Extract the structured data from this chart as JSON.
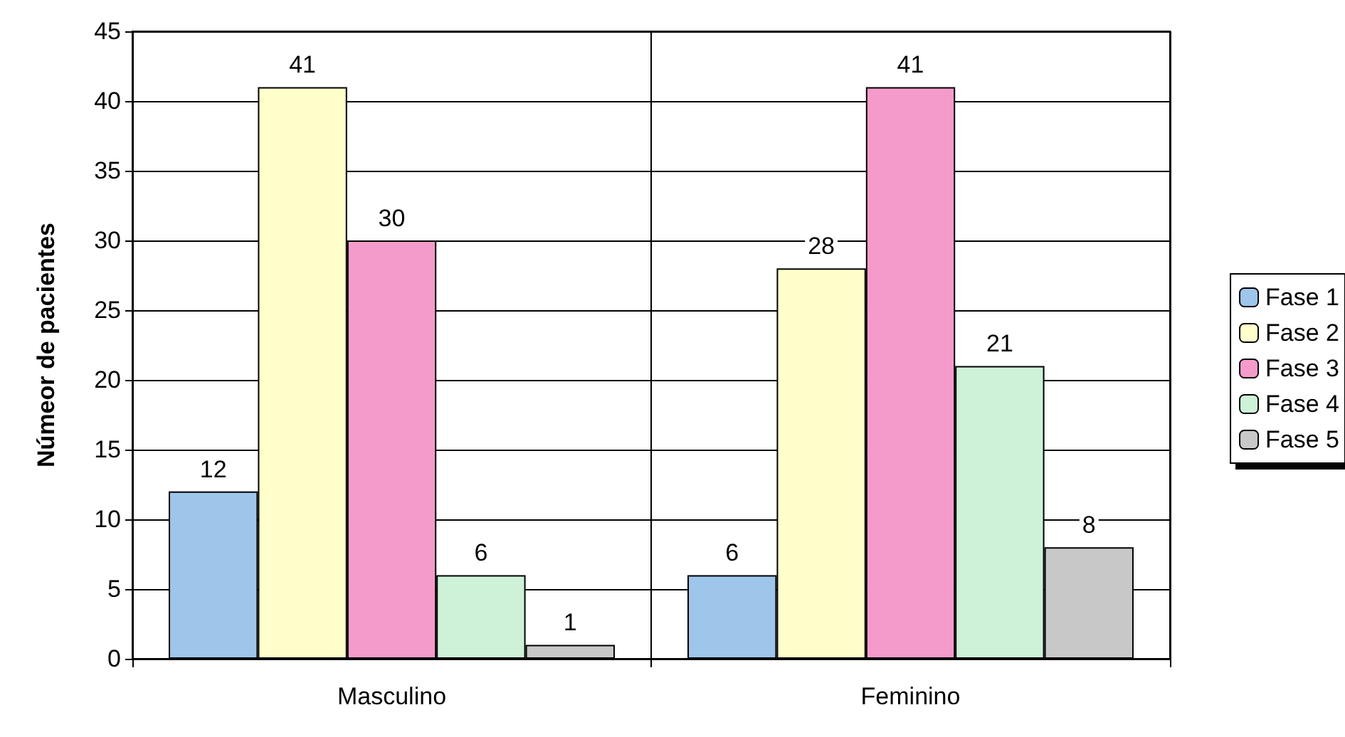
{
  "chart_data": {
    "type": "bar",
    "ylabel": "Númeor de pacientes",
    "categories": [
      "Masculino",
      "Feminino"
    ],
    "series": [
      {
        "name": "Fase 1",
        "color": "#9ec5ea",
        "values": [
          12,
          6
        ]
      },
      {
        "name": "Fase 2",
        "color": "#ffffcc",
        "values": [
          41,
          28
        ]
      },
      {
        "name": "Fase 3",
        "color": "#f59bcb",
        "values": [
          30,
          41
        ]
      },
      {
        "name": "Fase 4",
        "color": "#cdf2d8",
        "values": [
          6,
          21
        ]
      },
      {
        "name": "Fase 5",
        "color": "#c8c8c8",
        "values": [
          1,
          8
        ]
      }
    ],
    "ylim": [
      0,
      45
    ],
    "yticks": [
      0,
      5,
      10,
      15,
      20,
      25,
      30,
      35,
      40,
      45
    ],
    "grid": true,
    "legend": "right",
    "data_labels": true
  }
}
